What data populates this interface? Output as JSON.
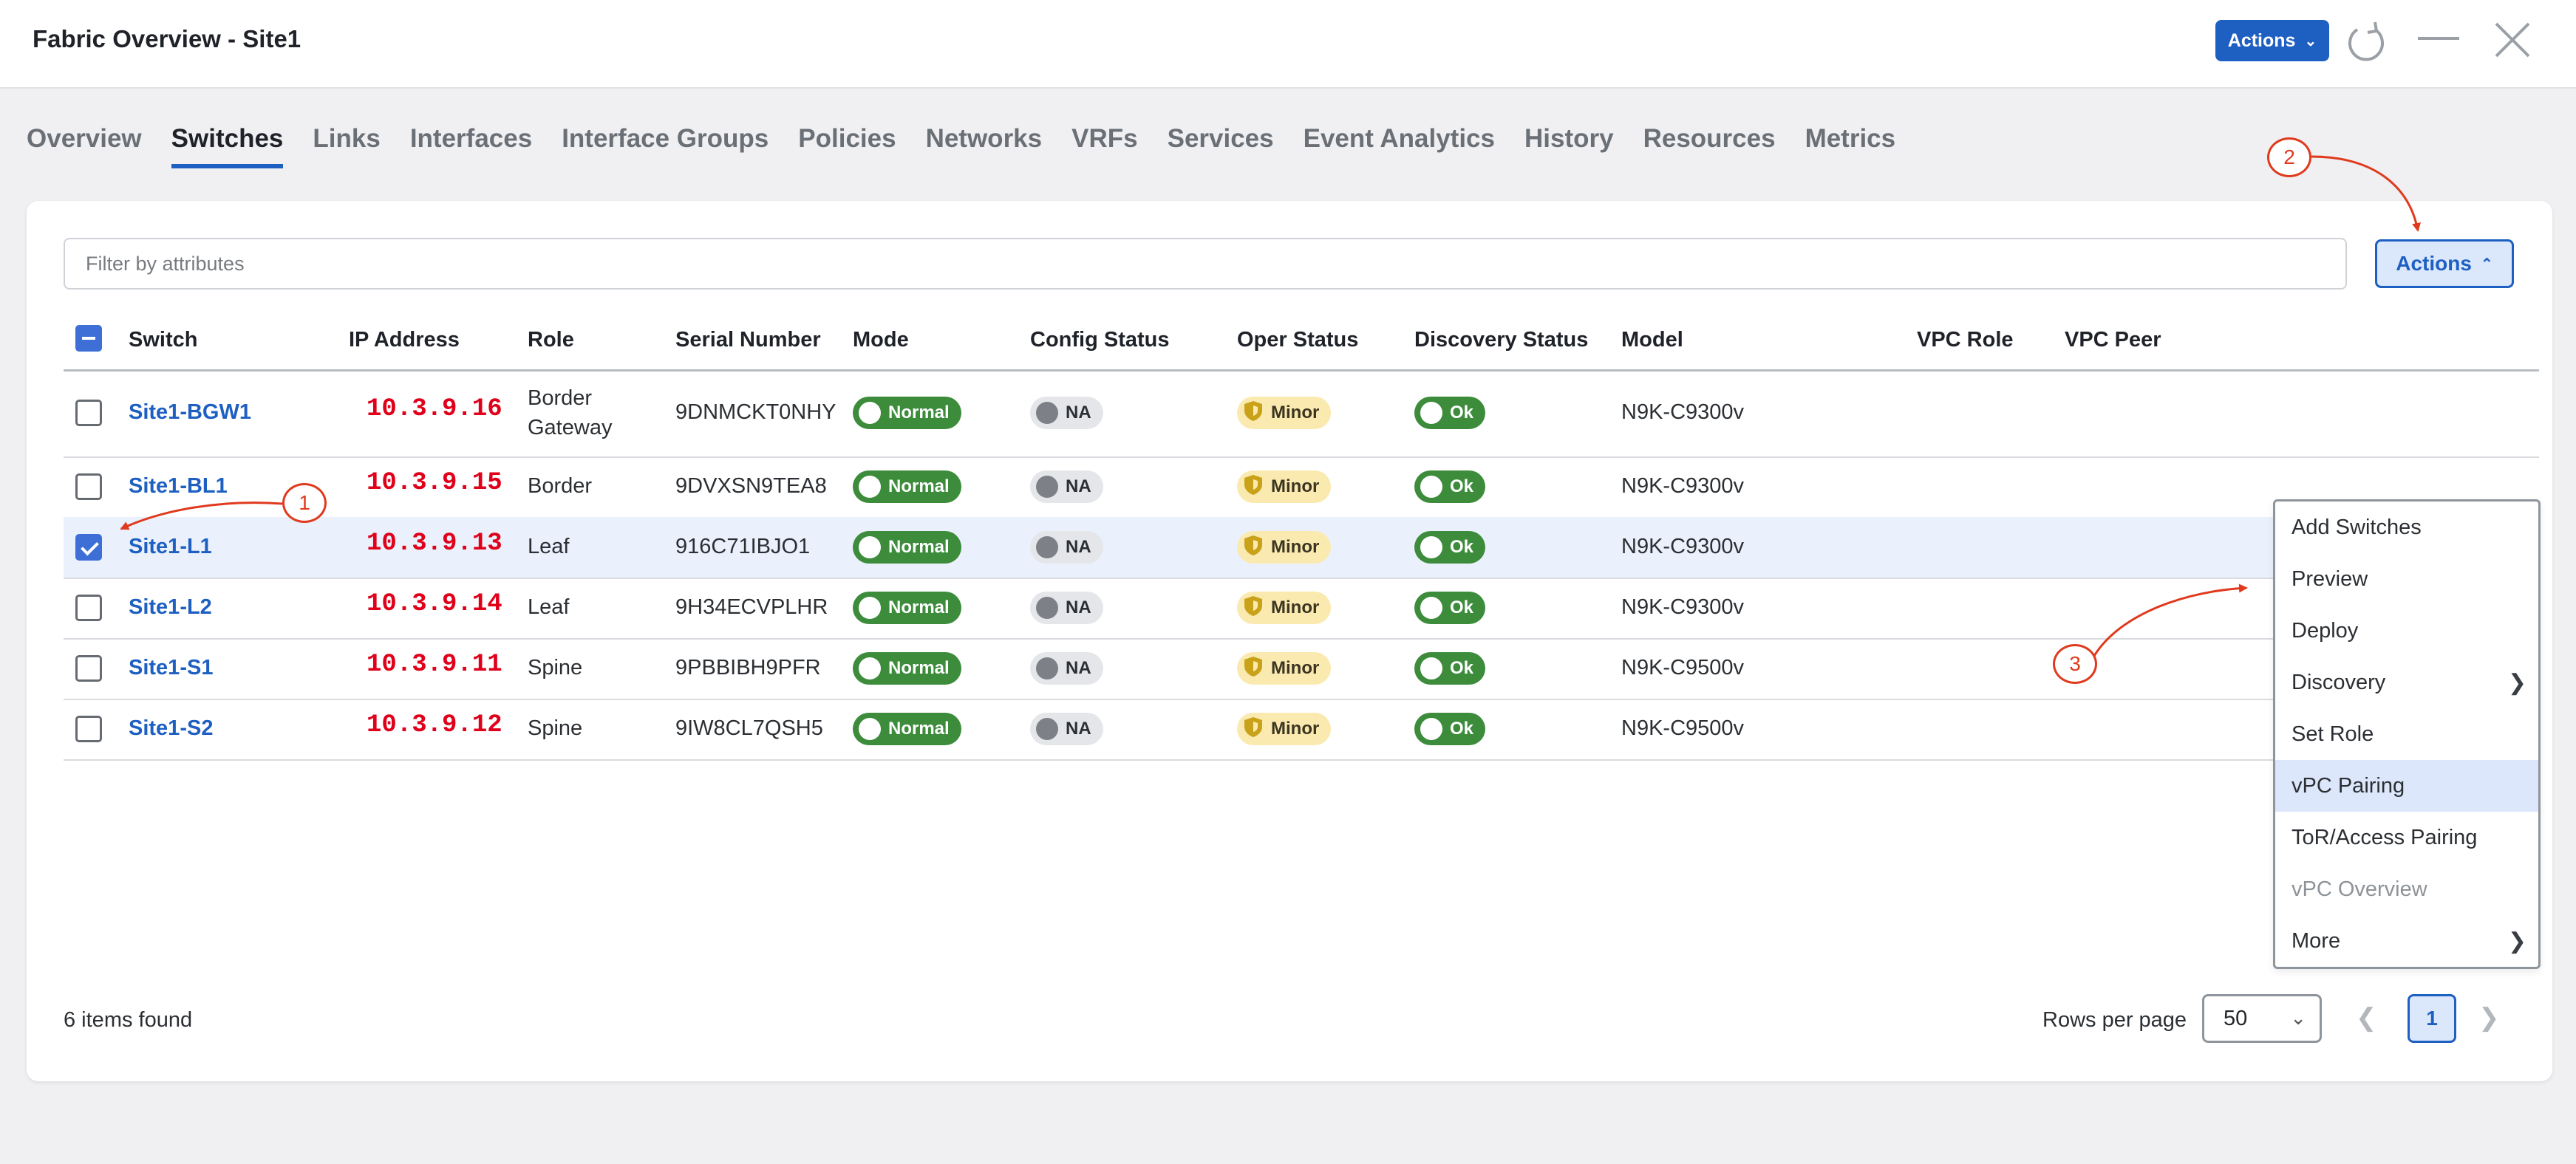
{
  "window": {
    "title": "Fabric Overview - Site1",
    "actions_label": "Actions"
  },
  "tabs": [
    {
      "label": "Overview",
      "active": false
    },
    {
      "label": "Switches",
      "active": true
    },
    {
      "label": "Links",
      "active": false
    },
    {
      "label": "Interfaces",
      "active": false
    },
    {
      "label": "Interface Groups",
      "active": false
    },
    {
      "label": "Policies",
      "active": false
    },
    {
      "label": "Networks",
      "active": false
    },
    {
      "label": "VRFs",
      "active": false
    },
    {
      "label": "Services",
      "active": false
    },
    {
      "label": "Event Analytics",
      "active": false
    },
    {
      "label": "History",
      "active": false
    },
    {
      "label": "Resources",
      "active": false
    },
    {
      "label": "Metrics",
      "active": false
    }
  ],
  "filter": {
    "placeholder": "Filter by attributes"
  },
  "table_actions_label": "Actions",
  "columns": [
    "Switch",
    "IP Address",
    "Role",
    "Serial Number",
    "Mode",
    "Config Status",
    "Oper Status",
    "Discovery Status",
    "Model",
    "VPC Role",
    "VPC Peer"
  ],
  "rows": [
    {
      "switch": "Site1-BGW1",
      "ip": "10.3.9.16",
      "role_line1": "Border",
      "role_line2": "Gateway",
      "serial": "9DNMCKT0NHY",
      "mode": "Normal",
      "config": "NA",
      "oper": "Minor",
      "discovery": "Ok",
      "model": "N9K-C9300v",
      "checked": false
    },
    {
      "switch": "Site1-BL1",
      "ip": "10.3.9.15",
      "role_line1": "Border",
      "role_line2": "",
      "serial": "9DVXSN9TEA8",
      "mode": "Normal",
      "config": "NA",
      "oper": "Minor",
      "discovery": "Ok",
      "model": "N9K-C9300v",
      "checked": false
    },
    {
      "switch": "Site1-L1",
      "ip": "10.3.9.13",
      "role_line1": "Leaf",
      "role_line2": "",
      "serial": "916C71IBJO1",
      "mode": "Normal",
      "config": "NA",
      "oper": "Minor",
      "discovery": "Ok",
      "model": "N9K-C9300v",
      "checked": true
    },
    {
      "switch": "Site1-L2",
      "ip": "10.3.9.14",
      "role_line1": "Leaf",
      "role_line2": "",
      "serial": "9H34ECVPLHR",
      "mode": "Normal",
      "config": "NA",
      "oper": "Minor",
      "discovery": "Ok",
      "model": "N9K-C9300v",
      "checked": false
    },
    {
      "switch": "Site1-S1",
      "ip": "10.3.9.11",
      "role_line1": "Spine",
      "role_line2": "",
      "serial": "9PBBIBH9PFR",
      "mode": "Normal",
      "config": "NA",
      "oper": "Minor",
      "discovery": "Ok",
      "model": "N9K-C9500v",
      "checked": false
    },
    {
      "switch": "Site1-S2",
      "ip": "10.3.9.12",
      "role_line1": "Spine",
      "role_line2": "",
      "serial": "9IW8CL7QSH5",
      "mode": "Normal",
      "config": "NA",
      "oper": "Minor",
      "discovery": "Ok",
      "model": "N9K-C9500v",
      "checked": false
    }
  ],
  "menu": [
    {
      "label": "Add Switches",
      "submenu": false,
      "highlighted": false,
      "disabled": false
    },
    {
      "label": "Preview",
      "submenu": false,
      "highlighted": false,
      "disabled": false
    },
    {
      "label": "Deploy",
      "submenu": false,
      "highlighted": false,
      "disabled": false
    },
    {
      "label": "Discovery",
      "submenu": true,
      "highlighted": false,
      "disabled": false
    },
    {
      "label": "Set Role",
      "submenu": false,
      "highlighted": false,
      "disabled": false
    },
    {
      "label": "vPC Pairing",
      "submenu": false,
      "highlighted": true,
      "disabled": false
    },
    {
      "label": "ToR/Access Pairing",
      "submenu": false,
      "highlighted": false,
      "disabled": false
    },
    {
      "label": "vPC Overview",
      "submenu": false,
      "highlighted": false,
      "disabled": true
    },
    {
      "label": "More",
      "submenu": true,
      "highlighted": false,
      "disabled": false
    }
  ],
  "footer": {
    "items_found": "6 items found",
    "rows_per_page_label": "Rows per page",
    "rows_per_page_value": "50",
    "current_page": "1"
  },
  "annotations": [
    "1",
    "2",
    "3"
  ],
  "colors": {
    "accent": "#1e5fc2",
    "ok_green": "#3c8c3c",
    "minor_yellow": "#faeab0",
    "annotation_red": "#e03a1e",
    "ip_red": "#e0001a"
  }
}
